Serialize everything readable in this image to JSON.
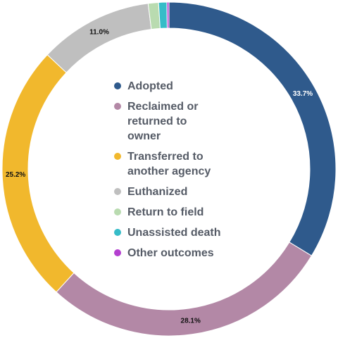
{
  "chart_data": {
    "type": "pie",
    "donut": true,
    "legend_position": "center",
    "categories": [
      "Adopted",
      "Reclaimed or returned to owner",
      "Transferred to another agency",
      "Euthanized",
      "Return to field",
      "Unassisted death",
      "Other outcomes"
    ],
    "legend_labels": [
      [
        "Adopted"
      ],
      [
        "Reclaimed or",
        "returned to",
        "owner"
      ],
      [
        "Transferred to",
        "another agency"
      ],
      [
        "Euthanized"
      ],
      [
        "Return to field"
      ],
      [
        "Unassisted death"
      ],
      [
        "Other outcomes"
      ]
    ],
    "values": [
      33.7,
      28.1,
      25.2,
      11.0,
      1.0,
      0.8,
      0.2
    ],
    "value_labels": [
      "33.7%",
      "28.1%",
      "25.2%",
      "11.0%",
      "",
      "",
      ""
    ],
    "colors": [
      "#2f5a8c",
      "#b388a6",
      "#f1b82d",
      "#bfbfbf",
      "#b9dbb0",
      "#36bcc8",
      "#b43fd0"
    ]
  }
}
